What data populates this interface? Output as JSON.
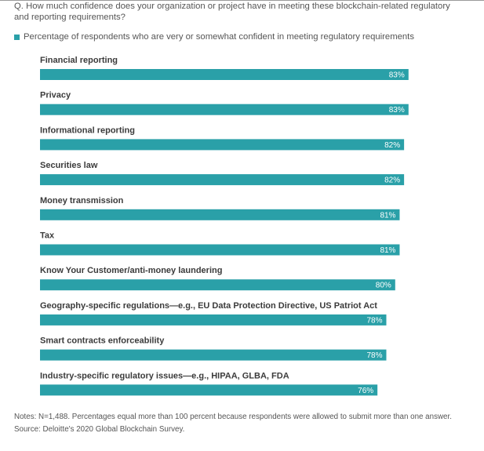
{
  "question": "Q. How much confidence does your organization or project have in meeting these blockchain-related regulatory and reporting requirements?",
  "legend_label": "Percentage of respondents who are very or somewhat confident in meeting regulatory requirements",
  "colors": {
    "bar": "#2aa0a8",
    "bar_label": "#ffffff",
    "category_label": "#3b3b3b"
  },
  "chart_data": {
    "type": "bar",
    "orientation": "horizontal",
    "categories": [
      "Financial reporting",
      "Privacy",
      "Informational reporting",
      "Securities law",
      "Money transmission",
      "Tax",
      "Know Your Customer/anti-money laundering",
      "Geography-specific regulations—e.g., EU Data Protection Directive, US Patriot Act",
      "Smart contracts enforceability",
      "Industry-specific regulatory issues—e.g., HIPAA, GLBA, FDA"
    ],
    "values": [
      83,
      83,
      82,
      82,
      81,
      81,
      80,
      78,
      78,
      76
    ],
    "value_labels": [
      "83%",
      "83%",
      "82%",
      "82%",
      "81%",
      "81%",
      "80%",
      "78%",
      "78%",
      "76%"
    ],
    "series": [
      {
        "name": "Percentage of respondents who are very or somewhat confident in meeting regulatory requirements",
        "values": [
          83,
          83,
          82,
          82,
          81,
          81,
          80,
          78,
          78,
          76
        ]
      }
    ],
    "xlim": [
      0,
      100
    ],
    "grid": false,
    "legend_position": "top-left"
  },
  "notes": {
    "line1": "Notes: N=1,488. Percentages equal more than 100 percent because respondents were allowed to submit more than one answer.",
    "source": "Source: Deloitte's 2020 Global Blockchain Survey."
  }
}
